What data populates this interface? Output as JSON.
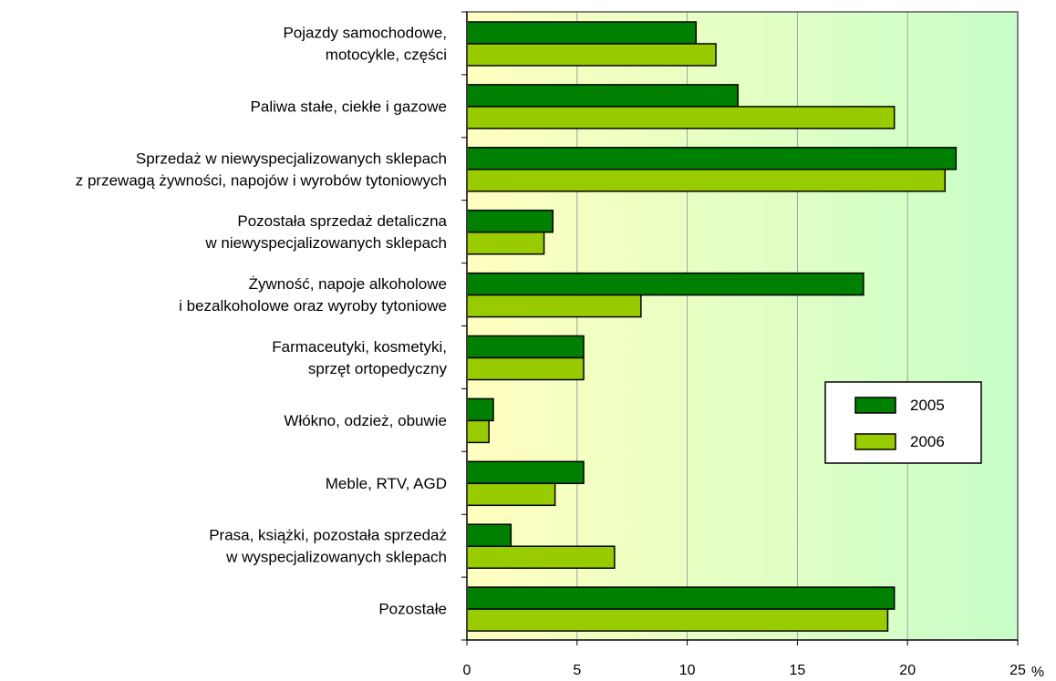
{
  "chart_data": {
    "type": "bar",
    "orientation": "horizontal",
    "categories": [
      [
        "Pojazdy samochodowe,",
        "motocykle, części"
      ],
      [
        "Paliwa stałe, ciekłe i gazowe"
      ],
      [
        "Sprzedaż w niewyspecjalizowanych sklepach",
        "z przewagą żywności, napojów i wyrobów tytoniowych"
      ],
      [
        "Pozostała sprzedaż detaliczna",
        "w niewyspecjalizowanych sklepach"
      ],
      [
        "Żywność, napoje alkoholowe",
        "i bezalkoholowe oraz wyroby tytoniowe"
      ],
      [
        "Farmaceutyki, kosmetyki,",
        "sprzęt ortopedyczny"
      ],
      [
        "Włókno, odzież, obuwie"
      ],
      [
        "Meble, RTV, AGD"
      ],
      [
        "Prasa, książki, pozostała sprzedaż",
        "w wyspecjalizowanych sklepach"
      ],
      [
        "Pozostałe"
      ]
    ],
    "series": [
      {
        "name": "2005",
        "color": "#008000",
        "values": [
          10.4,
          12.3,
          22.2,
          3.9,
          18.0,
          5.3,
          1.2,
          5.3,
          2.0,
          19.4
        ]
      },
      {
        "name": "2006",
        "color": "#99cc00",
        "values": [
          11.3,
          19.4,
          21.7,
          3.5,
          7.9,
          5.3,
          1.0,
          4.0,
          6.7,
          19.1
        ]
      }
    ],
    "xlim": [
      0,
      25
    ],
    "xticks": [
      "0",
      "5",
      "10",
      "15",
      "20",
      "25"
    ],
    "xlabel": "%",
    "ylabel": "",
    "title": "",
    "grid": "vertical",
    "legend": "right",
    "background_gradient": [
      "#ffffc0",
      "#c8ffc8"
    ]
  }
}
